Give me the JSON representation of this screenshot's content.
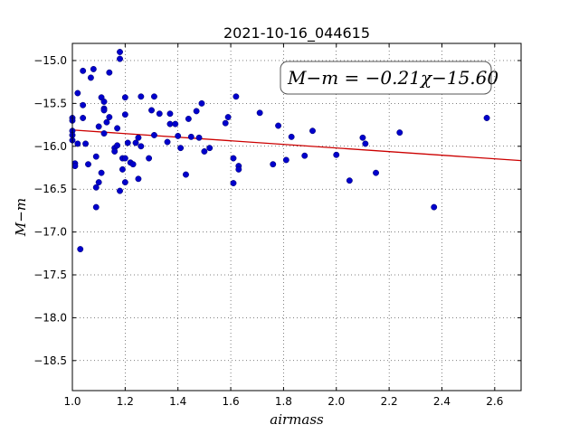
{
  "chart_data": {
    "type": "scatter",
    "title": "2021-10-16_044615",
    "xlabel": "airmass",
    "ylabel": "M−m",
    "xlim": [
      1.0,
      2.7
    ],
    "ylim": [
      -18.85,
      -14.8
    ],
    "xticks": [
      1.0,
      1.2,
      1.4,
      1.6,
      1.8,
      2.0,
      2.2,
      2.4,
      2.6
    ],
    "xtick_labels": [
      "1.0",
      "1.2",
      "1.4",
      "1.6",
      "1.8",
      "2.0",
      "2.2",
      "2.4",
      "2.6"
    ],
    "yticks": [
      -15.0,
      -15.5,
      -16.0,
      -16.5,
      -17.0,
      -17.5,
      -18.0,
      -18.5
    ],
    "ytick_labels": [
      "−15.0",
      "−15.5",
      "−16.0",
      "−16.5",
      "−17.0",
      "−17.5",
      "−18.0",
      "−18.5"
    ],
    "grid": true,
    "point_color": "#0000cc",
    "fit_color": "#cc0000",
    "annotation": "M−m = −0.21χ−15.60",
    "fit": {
      "slope": -0.21,
      "intercept": -15.6
    },
    "series": [
      {
        "points": [
          [
            1.0,
            -15.67
          ],
          [
            1.0,
            -15.7
          ],
          [
            1.0,
            -15.82
          ],
          [
            1.0,
            -15.87
          ],
          [
            1.0,
            -15.93
          ],
          [
            1.01,
            -16.2
          ],
          [
            1.01,
            -16.23
          ],
          [
            1.02,
            -15.38
          ],
          [
            1.02,
            -15.97
          ],
          [
            1.03,
            -17.2
          ],
          [
            1.04,
            -15.12
          ],
          [
            1.04,
            -15.52
          ],
          [
            1.04,
            -15.67
          ],
          [
            1.05,
            -15.97
          ],
          [
            1.06,
            -16.21
          ],
          [
            1.07,
            -15.2
          ],
          [
            1.08,
            -15.1
          ],
          [
            1.09,
            -16.12
          ],
          [
            1.09,
            -16.48
          ],
          [
            1.09,
            -16.71
          ],
          [
            1.1,
            -15.77
          ],
          [
            1.1,
            -16.42
          ],
          [
            1.11,
            -15.43
          ],
          [
            1.11,
            -16.31
          ],
          [
            1.12,
            -15.48
          ],
          [
            1.12,
            -15.56
          ],
          [
            1.12,
            -15.58
          ],
          [
            1.12,
            -15.85
          ],
          [
            1.13,
            -15.72
          ],
          [
            1.14,
            -15.14
          ],
          [
            1.14,
            -15.66
          ],
          [
            1.16,
            -16.02
          ],
          [
            1.16,
            -16.06
          ],
          [
            1.17,
            -15.79
          ],
          [
            1.17,
            -15.99
          ],
          [
            1.18,
            -16.52
          ],
          [
            1.18,
            -14.9
          ],
          [
            1.18,
            -14.98
          ],
          [
            1.19,
            -16.14
          ],
          [
            1.19,
            -16.27
          ],
          [
            1.2,
            -15.43
          ],
          [
            1.2,
            -15.63
          ],
          [
            1.2,
            -16.14
          ],
          [
            1.2,
            -16.42
          ],
          [
            1.21,
            -15.96
          ],
          [
            1.22,
            -16.19
          ],
          [
            1.23,
            -16.21
          ],
          [
            1.24,
            -15.96
          ],
          [
            1.25,
            -15.9
          ],
          [
            1.25,
            -16.38
          ],
          [
            1.26,
            -15.42
          ],
          [
            1.26,
            -16.0
          ],
          [
            1.29,
            -16.14
          ],
          [
            1.3,
            -15.58
          ],
          [
            1.31,
            -15.42
          ],
          [
            1.31,
            -15.87
          ],
          [
            1.33,
            -15.62
          ],
          [
            1.36,
            -15.95
          ],
          [
            1.37,
            -15.62
          ],
          [
            1.37,
            -15.74
          ],
          [
            1.39,
            -15.74
          ],
          [
            1.4,
            -15.88
          ],
          [
            1.41,
            -16.02
          ],
          [
            1.43,
            -16.33
          ],
          [
            1.44,
            -15.68
          ],
          [
            1.45,
            -15.89
          ],
          [
            1.47,
            -15.59
          ],
          [
            1.48,
            -15.9
          ],
          [
            1.49,
            -15.5
          ],
          [
            1.5,
            -16.06
          ],
          [
            1.52,
            -16.02
          ],
          [
            1.58,
            -15.73
          ],
          [
            1.59,
            -15.66
          ],
          [
            1.61,
            -16.14
          ],
          [
            1.61,
            -16.43
          ],
          [
            1.62,
            -15.42
          ],
          [
            1.63,
            -16.23
          ],
          [
            1.63,
            -16.27
          ],
          [
            1.71,
            -15.61
          ],
          [
            1.76,
            -16.21
          ],
          [
            1.78,
            -15.76
          ],
          [
            1.81,
            -16.16
          ],
          [
            1.83,
            -15.89
          ],
          [
            1.88,
            -16.11
          ],
          [
            1.91,
            -15.82
          ],
          [
            2.0,
            -16.1
          ],
          [
            2.05,
            -16.4
          ],
          [
            2.1,
            -15.9
          ],
          [
            2.11,
            -15.97
          ],
          [
            2.15,
            -16.31
          ],
          [
            2.24,
            -15.84
          ],
          [
            2.37,
            -16.71
          ],
          [
            2.57,
            -15.67
          ]
        ]
      }
    ]
  }
}
